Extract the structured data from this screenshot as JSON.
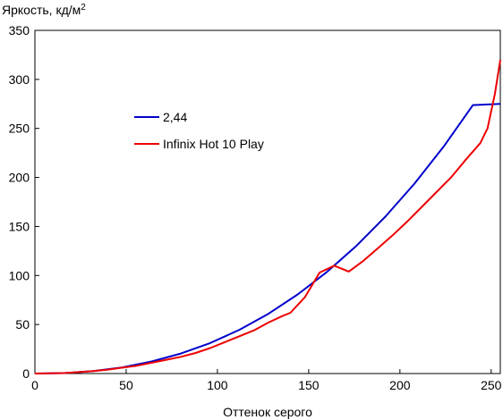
{
  "chart_data": {
    "type": "line",
    "ylabel": "Яркость, кд/м",
    "ylabel_superscript": "2",
    "xlabel": "Оттенок серого",
    "xlim": [
      0,
      255
    ],
    "ylim": [
      0,
      350
    ],
    "xticks": [
      0,
      50,
      100,
      150,
      200,
      250
    ],
    "yticks": [
      0,
      50,
      100,
      150,
      200,
      250,
      300,
      350
    ],
    "grid": false,
    "legend_position": "center-left",
    "series": [
      {
        "name": "2,44",
        "color": "#0000cc",
        "x": [
          0,
          16,
          32,
          48,
          64,
          80,
          96,
          112,
          128,
          144,
          160,
          176,
          192,
          208,
          224,
          240,
          255
        ],
        "y": [
          0,
          0.5,
          2.5,
          6.3,
          12.3,
          20.4,
          31.1,
          44.6,
          61.0,
          80.7,
          103.6,
          130.0,
          160.0,
          193.8,
          231.6,
          273.8,
          275.0
        ]
      },
      {
        "name": "Infinix Hot 10 Play",
        "color": "#ee0000",
        "x": [
          0,
          16,
          24,
          32,
          40,
          48,
          56,
          64,
          72,
          80,
          88,
          96,
          104,
          112,
          120,
          128,
          136,
          140,
          148,
          156,
          164,
          172,
          180,
          188,
          196,
          204,
          212,
          220,
          228,
          236,
          244,
          248,
          252,
          255
        ],
        "y": [
          0,
          0.5,
          1.5,
          2.5,
          4,
          6,
          8,
          11,
          14,
          17,
          21,
          26,
          32,
          38,
          44,
          52,
          59,
          62,
          78,
          103,
          110,
          104,
          115,
          128,
          141,
          155,
          170,
          185,
          200,
          218,
          235,
          250,
          285,
          320
        ]
      }
    ]
  }
}
